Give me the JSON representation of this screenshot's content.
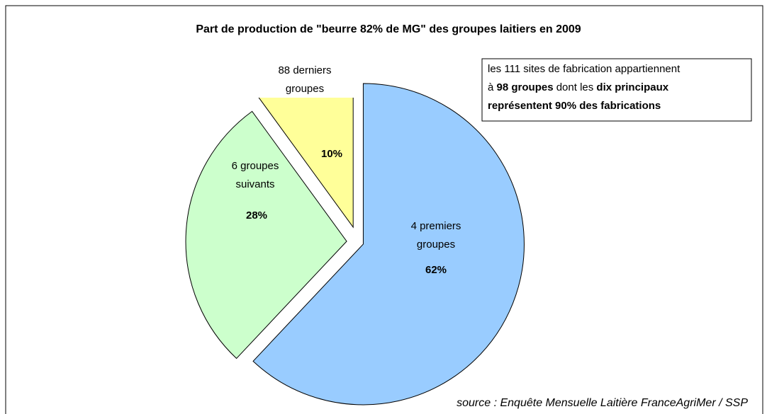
{
  "chart_data": {
    "type": "pie",
    "title": "Part de production de \"beurre 82% de MG\" des groupes laitiers en 2009",
    "categories": [
      "4 premiers groupes",
      "6 groupes suivants",
      "88 derniers groupes"
    ],
    "values": [
      62,
      28,
      10
    ],
    "value_labels": [
      "62%",
      "28%",
      "10%"
    ],
    "colors": [
      "#99ccff",
      "#ccffcc",
      "#ffff99"
    ],
    "annotation": [
      [
        {
          "text": "les 111 sites de fabrication appartiennent",
          "bold": false
        }
      ],
      [
        {
          "text": "à ",
          "bold": false
        },
        {
          "text": "98 groupes",
          "bold": true
        },
        {
          "text": " dont les ",
          "bold": false
        },
        {
          "text": "dix principaux",
          "bold": true
        }
      ],
      [
        {
          "text": "représentent 90% des fabrications",
          "bold": true
        }
      ]
    ],
    "source": "source : Enquête Mensuelle Laitière FranceAgriMer / SSP"
  }
}
